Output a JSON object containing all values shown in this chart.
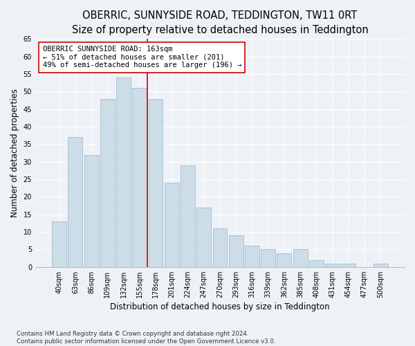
{
  "title": "OBERRIC, SUNNYSIDE ROAD, TEDDINGTON, TW11 0RT",
  "subtitle": "Size of property relative to detached houses in Teddington",
  "xlabel": "Distribution of detached houses by size in Teddington",
  "ylabel": "Number of detached properties",
  "footer_line1": "Contains HM Land Registry data © Crown copyright and database right 2024.",
  "footer_line2": "Contains public sector information licensed under the Open Government Licence v3.0.",
  "bar_labels": [
    "40sqm",
    "63sqm",
    "86sqm",
    "109sqm",
    "132sqm",
    "155sqm",
    "178sqm",
    "201sqm",
    "224sqm",
    "247sqm",
    "270sqm",
    "293sqm",
    "316sqm",
    "339sqm",
    "362sqm",
    "385sqm",
    "408sqm",
    "431sqm",
    "454sqm",
    "477sqm",
    "500sqm"
  ],
  "bar_heights": [
    13,
    37,
    32,
    48,
    54,
    51,
    48,
    24,
    29,
    17,
    11,
    9,
    6,
    5,
    4,
    5,
    2,
    1,
    1,
    0,
    1
  ],
  "bar_color": "#ccdde8",
  "bar_edge_color": "#a0bdd0",
  "vline_x": 5.5,
  "vline_color": "#cc0000",
  "annotation_title": "OBERRIC SUNNYSIDE ROAD: 163sqm",
  "annotation_line1": "← 51% of detached houses are smaller (201)",
  "annotation_line2": "49% of semi-detached houses are larger (196) →",
  "annotation_box_color": "#ffffff",
  "annotation_box_edge": "#cc0000",
  "ylim": [
    0,
    65
  ],
  "yticks": [
    0,
    5,
    10,
    15,
    20,
    25,
    30,
    35,
    40,
    45,
    50,
    55,
    60,
    65
  ],
  "background_color": "#eef2f7",
  "plot_bg_color": "#eef2f7",
  "title_fontsize": 10.5,
  "xlabel_fontsize": 8.5,
  "ylabel_fontsize": 8.5,
  "tick_fontsize": 7,
  "annotation_fontsize": 7.5,
  "footer_fontsize": 6.2
}
